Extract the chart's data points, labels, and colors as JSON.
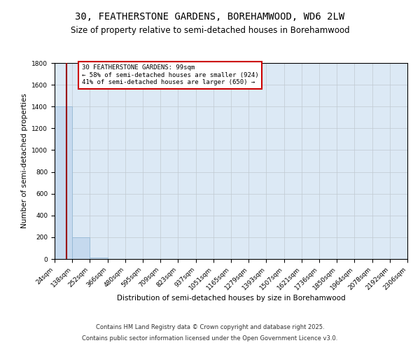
{
  "title": "30, FEATHERSTONE GARDENS, BOREHAMWOOD, WD6 2LW",
  "subtitle": "Size of property relative to semi-detached houses in Borehamwood",
  "xlabel": "Distribution of semi-detached houses by size in Borehamwood",
  "ylabel": "Number of semi-detached properties",
  "bin_edges": [
    24,
    138,
    252,
    366,
    480,
    595,
    709,
    823,
    937,
    1051,
    1165,
    1279,
    1393,
    1507,
    1621,
    1736,
    1850,
    1964,
    2078,
    2192,
    2306
  ],
  "bar_heights": [
    1400,
    200,
    15,
    3,
    1,
    0,
    0,
    0,
    0,
    0,
    0,
    0,
    0,
    0,
    0,
    0,
    0,
    0,
    0,
    0
  ],
  "bar_color": "#c5d9ee",
  "bar_edgecolor": "#8cb4d2",
  "property_size": 99,
  "property_line_color": "#990000",
  "ylim": [
    0,
    1800
  ],
  "yticks": [
    0,
    200,
    400,
    600,
    800,
    1000,
    1200,
    1400,
    1600,
    1800
  ],
  "annotation_text": "30 FEATHERSTONE GARDENS: 99sqm\n← 58% of semi-detached houses are smaller (924)\n41% of semi-detached houses are larger (650) →",
  "annotation_box_edgecolor": "#cc0000",
  "annotation_box_facecolor": "#ffffff",
  "bg_color": "#dce9f5",
  "footnote1": "Contains HM Land Registry data © Crown copyright and database right 2025.",
  "footnote2": "Contains public sector information licensed under the Open Government Licence v3.0.",
  "title_fontsize": 10,
  "subtitle_fontsize": 8.5,
  "tick_fontsize": 6.5,
  "label_fontsize": 7.5
}
